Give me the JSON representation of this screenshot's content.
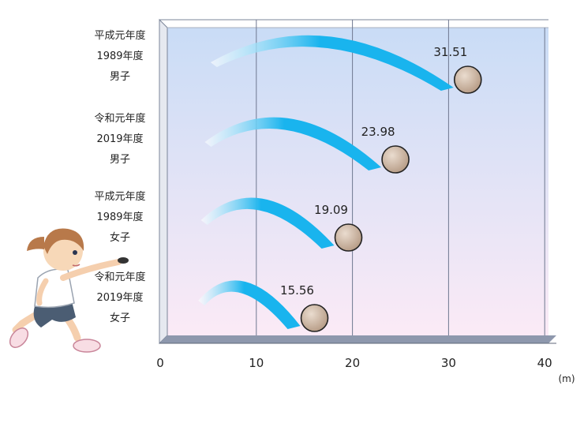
{
  "chart_data": {
    "type": "bar",
    "categories": [
      [
        "平成元年度",
        "1989年度",
        "男子"
      ],
      [
        "令和元年度",
        "2019年度",
        "男子"
      ],
      [
        "平成元年度",
        "1989年度",
        "女子"
      ],
      [
        "令和元年度",
        "2019年度",
        "女子"
      ]
    ],
    "values": [
      31.51,
      23.98,
      19.09,
      15.56
    ],
    "data_labels": [
      "31.51",
      "23.98",
      "19.09",
      "15.56"
    ],
    "xlim": [
      0,
      40
    ],
    "xticks": [
      "0",
      "10",
      "20",
      "30",
      "40"
    ],
    "unit": "(m)",
    "grid": true,
    "orientation": "horizontal",
    "colors": {
      "arc": "#19b4ee",
      "arc_light": "#bfeeff",
      "ball": "#c9b3a1",
      "bg_top": "#c9dcf6",
      "bg_bottom": "#fbeaf6",
      "floor": "#8e98ad"
    }
  }
}
